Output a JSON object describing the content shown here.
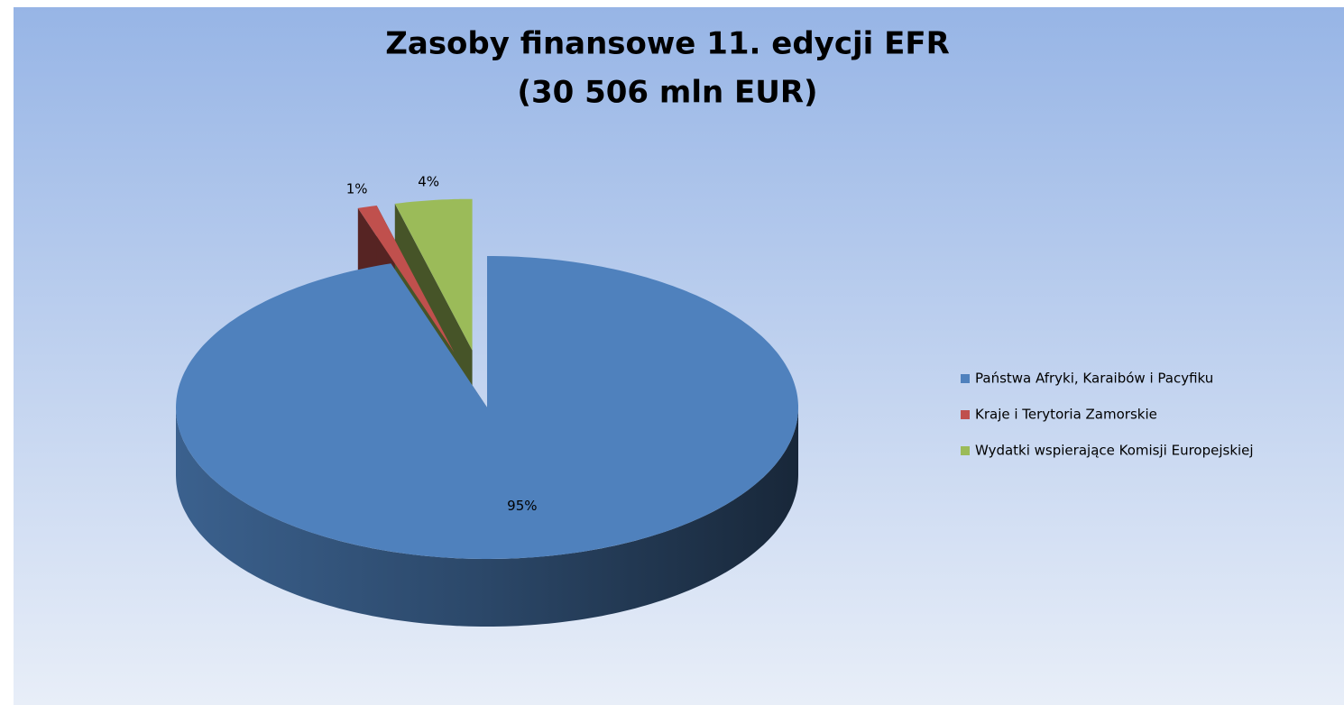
{
  "chart_data": {
    "type": "pie3d",
    "title": "Zasoby finansowe 11. edycji EFR",
    "subtitle": "(30 506 mln EUR)",
    "categories": [
      "Państwa Afryki, Karaibów i Pacyfiku",
      "Kraje i Terytoria Zamorskie",
      "Wydatki wspierające Komisji Europejskiej"
    ],
    "values": [
      95,
      1,
      4
    ],
    "value_labels": [
      "95%",
      "1%",
      "4%"
    ],
    "colors": [
      "#4f81bd",
      "#c0504d",
      "#9bbb59"
    ],
    "legend": "right"
  }
}
